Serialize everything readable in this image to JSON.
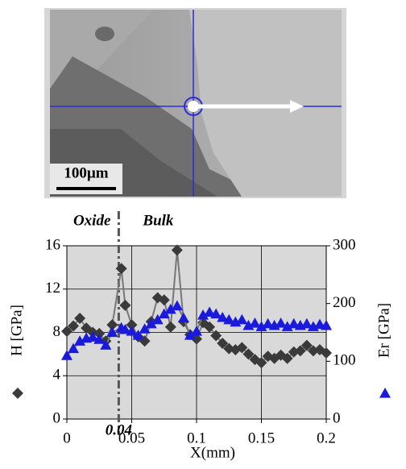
{
  "micrograph": {
    "scale_bar": "100µm"
  },
  "chart_data": {
    "type": "scatter",
    "xlabel": "X(mm)",
    "annotations": [
      {
        "text": "Oxide"
      },
      {
        "text": "Bulk"
      },
      {
        "text": "0.04",
        "x": 0.04
      }
    ],
    "x": [
      0,
      0.005,
      0.01,
      0.015,
      0.02,
      0.025,
      0.03,
      0.035,
      0.042,
      0.045,
      0.05,
      0.055,
      0.06,
      0.065,
      0.07,
      0.075,
      0.08,
      0.085,
      0.09,
      0.095,
      0.1,
      0.105,
      0.11,
      0.115,
      0.12,
      0.125,
      0.13,
      0.135,
      0.14,
      0.145,
      0.15,
      0.155,
      0.16,
      0.165,
      0.17,
      0.175,
      0.18,
      0.185,
      0.19,
      0.195,
      0.2
    ],
    "series": [
      {
        "name": "H [GPa]",
        "color": "#3a3a3a",
        "marker": "diamond",
        "axis": "y",
        "values": [
          8.1,
          8.6,
          9.3,
          8.4,
          8.0,
          7.9,
          7.2,
          8.7,
          13.9,
          10.5,
          8.7,
          7.6,
          7.2,
          9.0,
          11.2,
          11.0,
          8.5,
          15.6,
          9.0,
          7.8,
          7.4,
          8.9,
          8.5,
          7.7,
          7.0,
          6.5,
          6.4,
          6.6,
          6.0,
          5.5,
          5.2,
          5.8,
          5.6,
          5.9,
          5.6,
          6.2,
          6.3,
          6.8,
          6.3,
          6.4,
          6.1
        ]
      },
      {
        "name": "Er [GPa]",
        "color": "#1a1adc",
        "marker": "triangle",
        "axis": "y2",
        "values": [
          110,
          122,
          135,
          140,
          142,
          138,
          128,
          150,
          158,
          155,
          152,
          145,
          156,
          165,
          172,
          182,
          190,
          196,
          175,
          145,
          152,
          180,
          185,
          182,
          176,
          172,
          168,
          172,
          162,
          166,
          160,
          165,
          162,
          166,
          160,
          165,
          162,
          165,
          160,
          164,
          162
        ]
      }
    ],
    "xlim": [
      0,
      0.2
    ],
    "xticks": [
      0,
      0.05,
      0.1,
      0.15,
      0.2
    ],
    "ylim": [
      0,
      16
    ],
    "yticks": [
      0,
      4,
      8,
      12,
      16
    ],
    "y2lim": [
      0,
      300
    ],
    "y2ticks": [
      0,
      100,
      200,
      300
    ],
    "grid": true
  }
}
